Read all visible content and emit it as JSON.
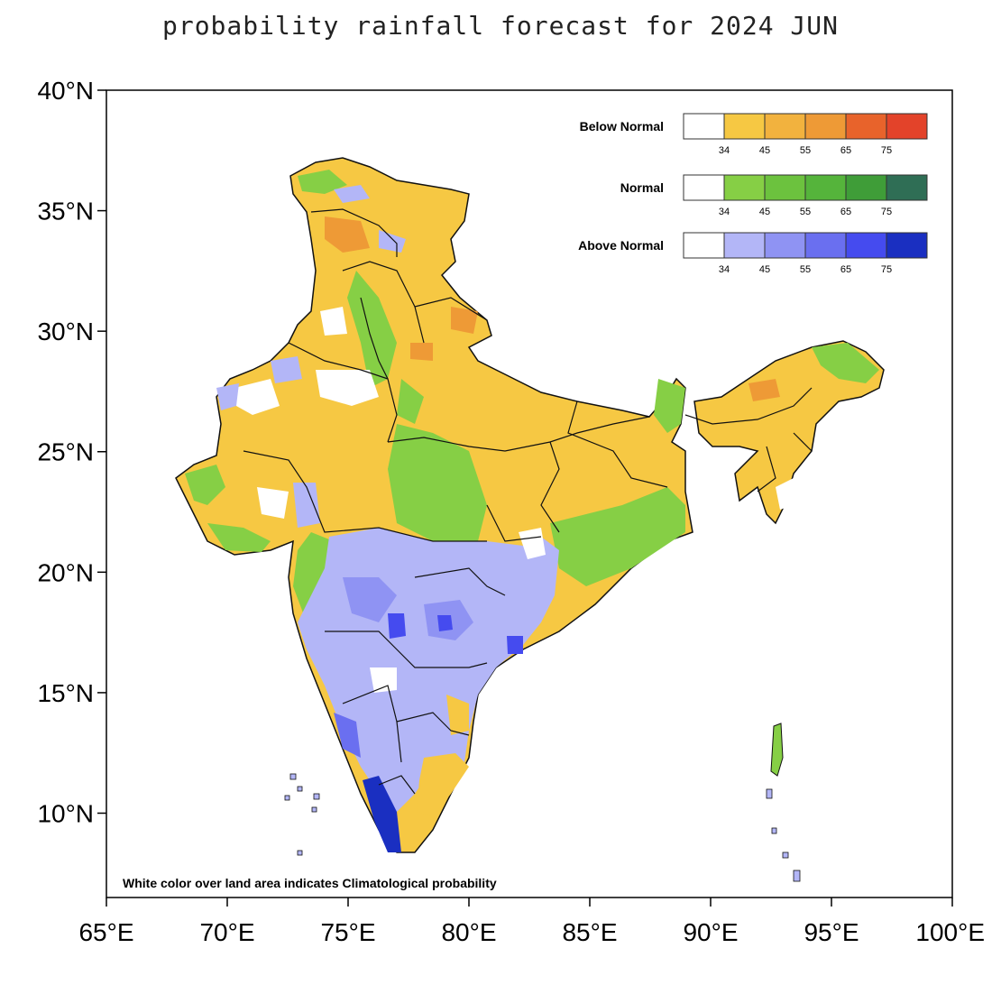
{
  "title": "probability rainfall forecast for 2024 JUN",
  "footnote": "White color over land area indicates Climatological probability",
  "axes": {
    "lat_labels": [
      "40°N",
      "35°N",
      "30°N",
      "25°N",
      "20°N",
      "15°N",
      "10°N"
    ],
    "lon_labels": [
      "65°E",
      "70°E",
      "75°E",
      "80°E",
      "85°E",
      "90°E",
      "95°E",
      "100°E"
    ],
    "lat_range": [
      6.5,
      40
    ],
    "lon_range": [
      65,
      100
    ]
  },
  "legend": [
    {
      "label": "Below Normal",
      "colors": [
        "#ffffff",
        "#f6c843",
        "#f2b23e",
        "#ee9a36",
        "#e8632b",
        "#e3432a"
      ],
      "ticks": [
        "34",
        "45",
        "55",
        "65",
        "75"
      ]
    },
    {
      "label": "Normal",
      "colors": [
        "#ffffff",
        "#86cf45",
        "#6cc23e",
        "#55b43b",
        "#3f9d38",
        "#2f6e55"
      ],
      "ticks": [
        "34",
        "45",
        "55",
        "65",
        "75"
      ]
    },
    {
      "label": "Above Normal",
      "colors": [
        "#ffffff",
        "#b3b6f7",
        "#8f93f3",
        "#6a6ff0",
        "#454bef",
        "#1a2fc1"
      ],
      "ticks": [
        "34",
        "45",
        "55",
        "65",
        "75"
      ]
    }
  ],
  "colors": {
    "below_normal": "#f6c843",
    "normal": "#86cf45",
    "above_normal": "#b3b6f7",
    "above_normal_high": "#1a2fc1",
    "boundary": "#111111"
  }
}
